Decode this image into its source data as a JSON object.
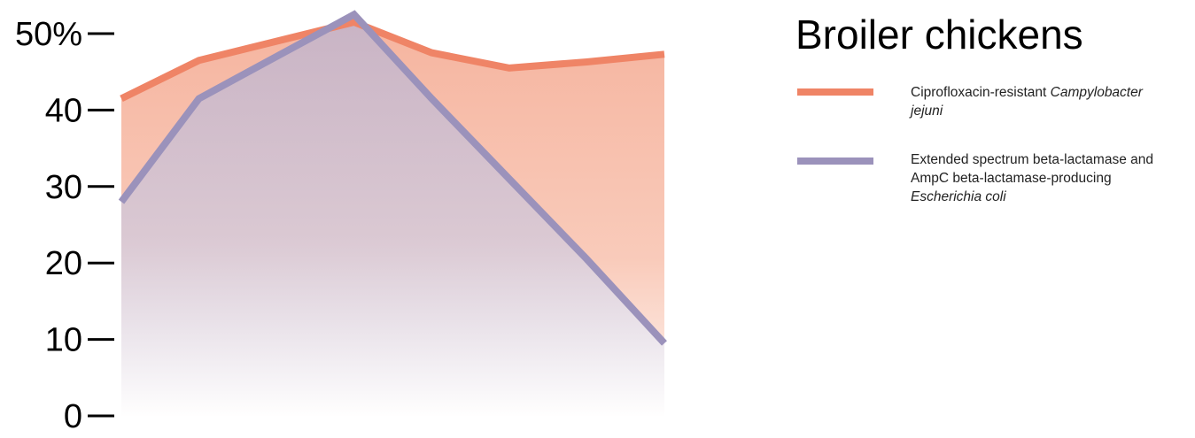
{
  "chart_data": {
    "type": "area",
    "title": "Broiler chickens",
    "ylim": [
      0,
      50
    ],
    "y_ticks": [
      "0",
      "10",
      "20",
      "30",
      "40",
      "50%"
    ],
    "y_tick_values": [
      0,
      10,
      20,
      30,
      40,
      50
    ],
    "x": [
      0,
      1,
      2,
      3,
      4,
      5,
      6,
      7
    ],
    "xlabel": "",
    "ylabel": "",
    "grid": false,
    "legend_position": "top-right",
    "series": [
      {
        "name": "Ciprofloxacin-resistant Campylobacter jejuni",
        "legend_plain": "Ciprofloxacin-resistant",
        "legend_italic": "Campylobacter jejuni",
        "color": "#ef8466",
        "values": [
          41.5,
          46.5,
          49,
          51.5,
          47.5,
          45.5,
          46.3,
          47.3
        ]
      },
      {
        "name": "Extended spectrum beta-lactamase and AmpC beta-lactamase-producing Escherichia coli",
        "legend_plain": "Extended spectrum beta-lactamase and AmpC beta-lactamase-producing",
        "legend_italic": "Escherichia coli",
        "color": "#9b92bb",
        "values": [
          28,
          41.5,
          47,
          52.5,
          41.5,
          31,
          20.5,
          9.5
        ]
      }
    ]
  }
}
